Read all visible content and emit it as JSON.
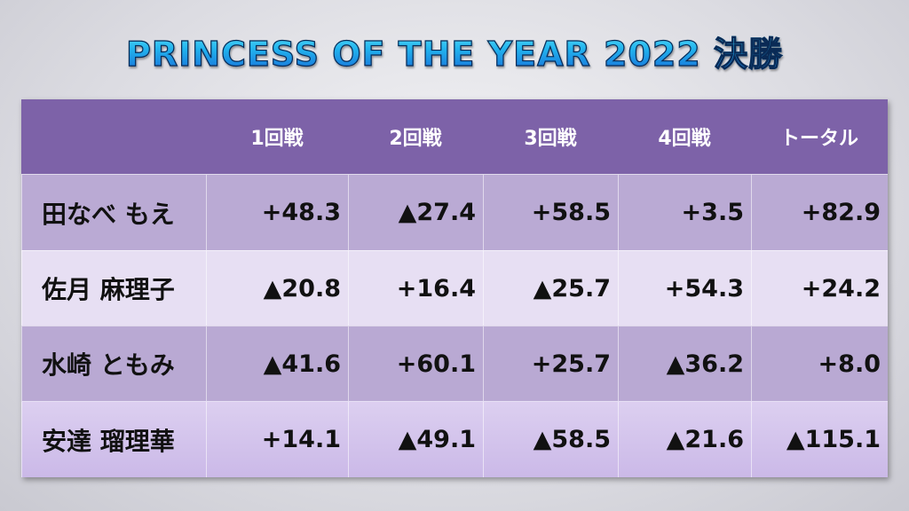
{
  "title": "PRINCESS OF THE YEAR 2022 決勝",
  "table": {
    "headers": [
      "1回戦",
      "2回戦",
      "3回戦",
      "4回戦",
      "トータル"
    ],
    "rows": [
      {
        "name": "田なべ もえ",
        "cells": [
          "+48.3",
          "▲27.4",
          "+58.5",
          "+3.5",
          "+82.9"
        ]
      },
      {
        "name": "佐月 麻理子",
        "cells": [
          "▲20.8",
          "+16.4",
          "▲25.7",
          "+54.3",
          "+24.2"
        ]
      },
      {
        "name": "水崎 ともみ",
        "cells": [
          "▲41.6",
          "+60.1",
          "+25.7",
          "▲36.2",
          "+8.0"
        ]
      },
      {
        "name": "安達 瑠理華",
        "cells": [
          "+14.1",
          "▲49.1",
          "▲58.5",
          "▲21.6",
          "▲115.1"
        ]
      }
    ]
  }
}
